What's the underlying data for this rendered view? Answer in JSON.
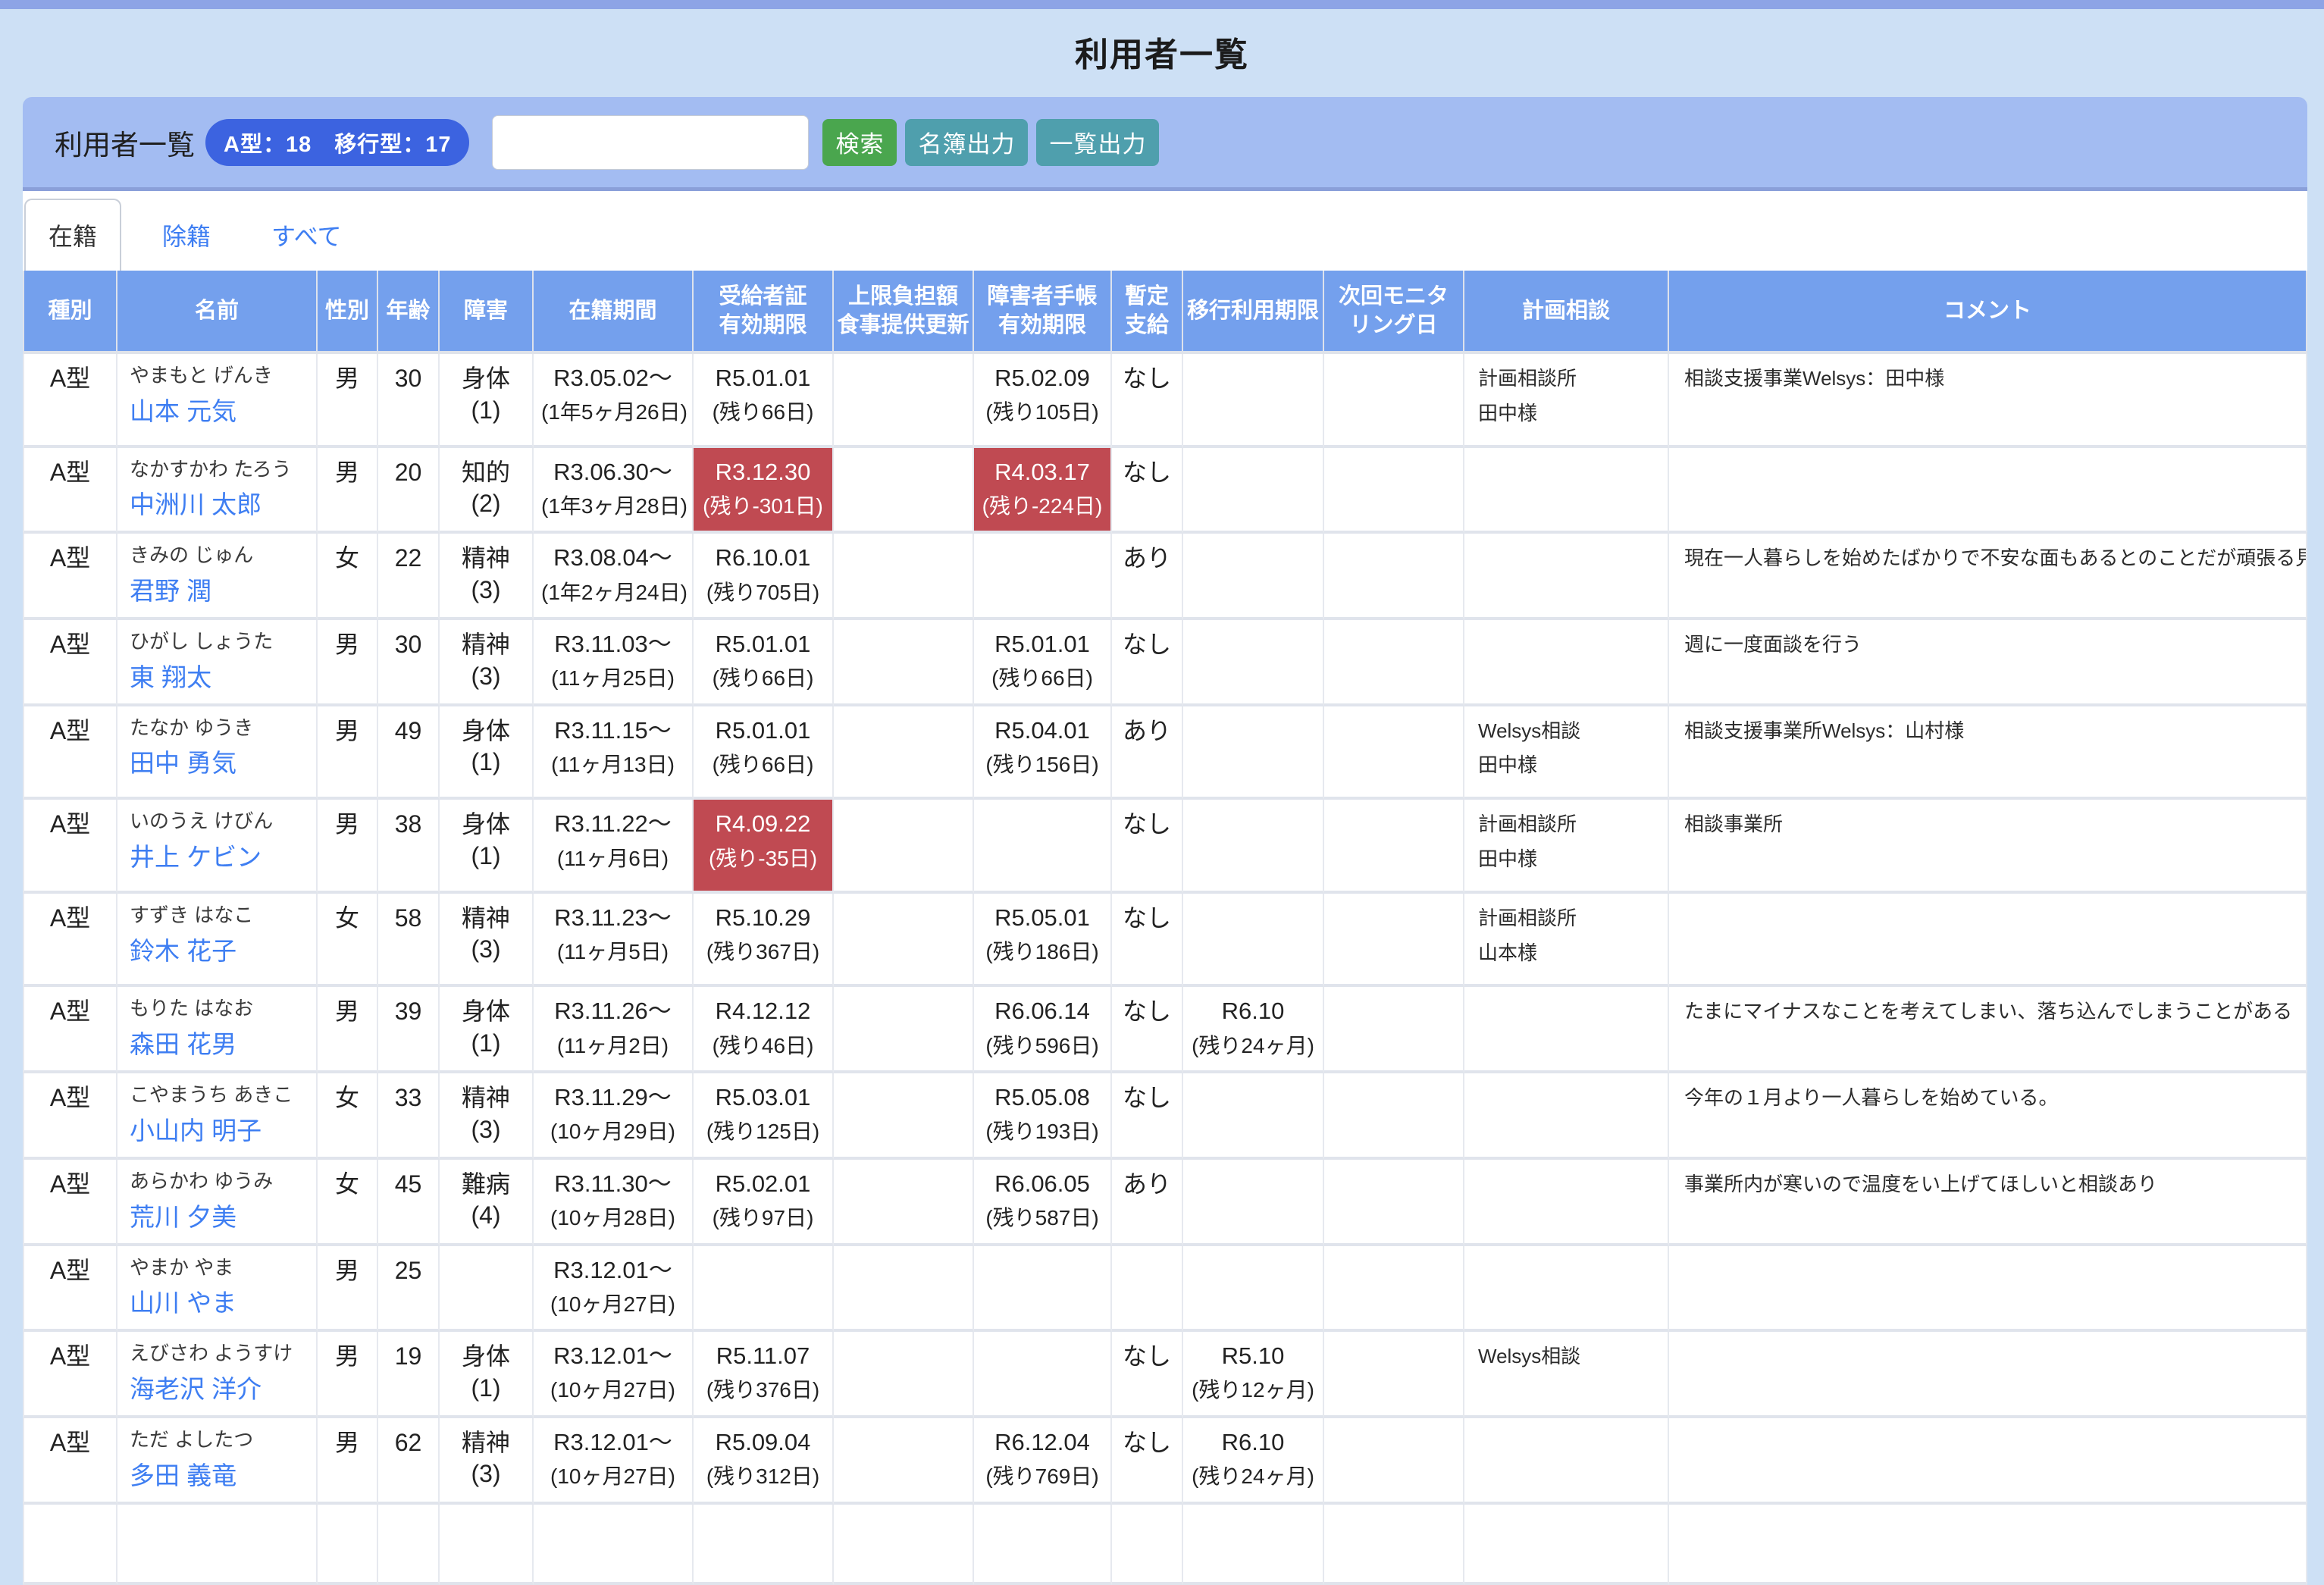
{
  "page": {
    "title": "利用者一覧"
  },
  "toolbar": {
    "label": "利用者一覧",
    "badge": "A型：18　移行型：17",
    "search_value": "",
    "search_placeholder": "",
    "buttons": {
      "search": "検索",
      "roster_export": "名簿出力",
      "list_export": "一覧出力"
    }
  },
  "tabs": [
    {
      "label": "在籍",
      "active": true
    },
    {
      "label": "除籍",
      "active": false
    },
    {
      "label": "すべて",
      "active": false
    }
  ],
  "colors": {
    "page_background": "#cde0f5",
    "top_strip": "#8da4e6",
    "toolbar_background": "#a3bcf2",
    "badge_background": "#3c63e0",
    "header_background": "#74a0ed",
    "alert_red": "#c04a52",
    "link_blue": "#3e7ef2",
    "button_green": "#4aa64e",
    "button_teal": "#4f9fad"
  },
  "table": {
    "columns": [
      {
        "id": "type",
        "lines": [
          "種別"
        ]
      },
      {
        "id": "name",
        "lines": [
          "名前"
        ]
      },
      {
        "id": "gender",
        "lines": [
          "性別"
        ]
      },
      {
        "id": "age",
        "lines": [
          "年齢"
        ]
      },
      {
        "id": "disability",
        "lines": [
          "障害"
        ]
      },
      {
        "id": "enroll",
        "lines": [
          "在籍期間"
        ]
      },
      {
        "id": "certificate",
        "lines": [
          "受給者証",
          "有効期限"
        ]
      },
      {
        "id": "meal",
        "lines": [
          "上限負担額",
          "食事提供更新"
        ]
      },
      {
        "id": "handbook",
        "lines": [
          "障害者手帳",
          "有効期限"
        ]
      },
      {
        "id": "provisional",
        "lines": [
          "暫定",
          "支給"
        ]
      },
      {
        "id": "transition",
        "lines": [
          "移行利用期限"
        ]
      },
      {
        "id": "monitoring",
        "lines": [
          "次回モニタ",
          "リング日"
        ]
      },
      {
        "id": "plan",
        "lines": [
          "計画相談"
        ]
      },
      {
        "id": "comment",
        "lines": [
          "コメント"
        ]
      }
    ],
    "rows": [
      {
        "type": "A型",
        "furigana": "やまもと げんき",
        "name": "山本 元気",
        "gender": "男",
        "age": "30",
        "disability": "身体(1)",
        "enroll": [
          "R3.05.02～",
          "(1年5ヶ月26日)"
        ],
        "certificate": [
          "R5.01.01",
          "(残り66日)"
        ],
        "certificate_alert": false,
        "meal": [],
        "handbook": [
          "R5.02.09",
          "(残り105日)"
        ],
        "handbook_alert": false,
        "provisional": "なし",
        "transition": [],
        "monitoring": [],
        "plan": [
          "計画相談所",
          "田中様"
        ],
        "comment": "相談支援事業Welsys：田中様"
      },
      {
        "type": "A型",
        "furigana": "なかすかわ たろう",
        "name": "中洲川 太郎",
        "gender": "男",
        "age": "20",
        "disability": "知的(2)",
        "enroll": [
          "R3.06.30～",
          "(1年3ヶ月28日)"
        ],
        "certificate": [
          "R3.12.30",
          "(残り-301日)"
        ],
        "certificate_alert": true,
        "meal": [],
        "handbook": [
          "R4.03.17",
          "(残り-224日)"
        ],
        "handbook_alert": true,
        "provisional": "なし",
        "transition": [],
        "monitoring": [],
        "plan": [],
        "comment": ""
      },
      {
        "type": "A型",
        "furigana": "きみの じゅん",
        "name": "君野 潤",
        "gender": "女",
        "age": "22",
        "disability": "精神(3)",
        "enroll": [
          "R3.08.04～",
          "(1年2ヶ月24日)"
        ],
        "certificate": [
          "R6.10.01",
          "(残り705日)"
        ],
        "certificate_alert": false,
        "meal": [],
        "handbook": [],
        "handbook_alert": false,
        "provisional": "あり",
        "transition": [],
        "monitoring": [],
        "plan": [],
        "comment": "現在一人暮らしを始めたばかりで不安な面もあるとのことだが頑張る見たいです"
      },
      {
        "type": "A型",
        "furigana": "ひがし しょうた",
        "name": "東 翔太",
        "gender": "男",
        "age": "30",
        "disability": "精神(3)",
        "enroll": [
          "R3.11.03～",
          "(11ヶ月25日)"
        ],
        "certificate": [
          "R5.01.01",
          "(残り66日)"
        ],
        "certificate_alert": false,
        "meal": [],
        "handbook": [
          "R5.01.01",
          "(残り66日)"
        ],
        "handbook_alert": false,
        "provisional": "なし",
        "transition": [],
        "monitoring": [],
        "plan": [],
        "comment": "週に一度面談を行う"
      },
      {
        "type": "A型",
        "furigana": "たなか ゆうき",
        "name": "田中 勇気",
        "gender": "男",
        "age": "49",
        "disability": "身体(1)",
        "enroll": [
          "R3.11.15～",
          "(11ヶ月13日)"
        ],
        "certificate": [
          "R5.01.01",
          "(残り66日)"
        ],
        "certificate_alert": false,
        "meal": [],
        "handbook": [
          "R5.04.01",
          "(残り156日)"
        ],
        "handbook_alert": false,
        "provisional": "あり",
        "transition": [],
        "monitoring": [],
        "plan": [
          "Welsys相談",
          "田中様"
        ],
        "comment": "相談支援事業所Welsys：山村様"
      },
      {
        "type": "A型",
        "furigana": "いのうえ けびん",
        "name": "井上 ケビン",
        "gender": "男",
        "age": "38",
        "disability": "身体(1)",
        "enroll": [
          "R3.11.22～",
          "(11ヶ月6日)"
        ],
        "certificate": [
          "R4.09.22",
          "(残り-35日)"
        ],
        "certificate_alert": true,
        "meal": [],
        "handbook": [],
        "handbook_alert": false,
        "provisional": "なし",
        "transition": [],
        "monitoring": [],
        "plan": [
          "計画相談所",
          "田中様"
        ],
        "comment": "相談事業所"
      },
      {
        "type": "A型",
        "furigana": "すずき はなこ",
        "name": "鈴木 花子",
        "gender": "女",
        "age": "58",
        "disability": "精神(3)",
        "enroll": [
          "R3.11.23～",
          "(11ヶ月5日)"
        ],
        "certificate": [
          "R5.10.29",
          "(残り367日)"
        ],
        "certificate_alert": false,
        "meal": [],
        "handbook": [
          "R5.05.01",
          "(残り186日)"
        ],
        "handbook_alert": false,
        "provisional": "なし",
        "transition": [],
        "monitoring": [],
        "plan": [
          "計画相談所",
          "山本様"
        ],
        "comment": ""
      },
      {
        "type": "A型",
        "furigana": "もりた はなお",
        "name": "森田 花男",
        "gender": "男",
        "age": "39",
        "disability": "身体(1)",
        "enroll": [
          "R3.11.26～",
          "(11ヶ月2日)"
        ],
        "certificate": [
          "R4.12.12",
          "(残り46日)"
        ],
        "certificate_alert": false,
        "meal": [],
        "handbook": [
          "R6.06.14",
          "(残り596日)"
        ],
        "handbook_alert": false,
        "provisional": "なし",
        "transition": [
          "R6.10",
          "(残り24ヶ月)"
        ],
        "monitoring": [],
        "plan": [],
        "comment": "たまにマイナスなことを考えてしまい、落ち込んでしまうことがある"
      },
      {
        "type": "A型",
        "furigana": "こやまうち あきこ",
        "name": "小山内 明子",
        "gender": "女",
        "age": "33",
        "disability": "精神(3)",
        "enroll": [
          "R3.11.29～",
          "(10ヶ月29日)"
        ],
        "certificate": [
          "R5.03.01",
          "(残り125日)"
        ],
        "certificate_alert": false,
        "meal": [],
        "handbook": [
          "R5.05.08",
          "(残り193日)"
        ],
        "handbook_alert": false,
        "provisional": "なし",
        "transition": [],
        "monitoring": [],
        "plan": [],
        "comment": "今年の１月より一人暮らしを始めている。"
      },
      {
        "type": "A型",
        "furigana": "あらかわ ゆうみ",
        "name": "荒川 夕美",
        "gender": "女",
        "age": "45",
        "disability": "難病(4)",
        "enroll": [
          "R3.11.30～",
          "(10ヶ月28日)"
        ],
        "certificate": [
          "R5.02.01",
          "(残り97日)"
        ],
        "certificate_alert": false,
        "meal": [],
        "handbook": [
          "R6.06.05",
          "(残り587日)"
        ],
        "handbook_alert": false,
        "provisional": "あり",
        "transition": [],
        "monitoring": [],
        "plan": [],
        "comment": "事業所内が寒いので温度をい上げてほしいと相談あり"
      },
      {
        "type": "A型",
        "furigana": "やまか やま",
        "name": "山川 やま",
        "gender": "男",
        "age": "25",
        "disability": "",
        "enroll": [
          "R3.12.01～",
          "(10ヶ月27日)"
        ],
        "certificate": [],
        "certificate_alert": false,
        "meal": [],
        "handbook": [],
        "handbook_alert": false,
        "provisional": "",
        "transition": [],
        "monitoring": [],
        "plan": [],
        "comment": ""
      },
      {
        "type": "A型",
        "furigana": "えびさわ ようすけ",
        "name": "海老沢 洋介",
        "gender": "男",
        "age": "19",
        "disability": "身体(1)",
        "enroll": [
          "R3.12.01～",
          "(10ヶ月27日)"
        ],
        "certificate": [
          "R5.11.07",
          "(残り376日)"
        ],
        "certificate_alert": false,
        "meal": [],
        "handbook": [],
        "handbook_alert": false,
        "provisional": "なし",
        "transition": [
          "R5.10",
          "(残り12ヶ月)"
        ],
        "monitoring": [],
        "plan": [
          "Welsys相談"
        ],
        "comment": ""
      },
      {
        "type": "A型",
        "furigana": "ただ よしたつ",
        "name": "多田 義竜",
        "gender": "男",
        "age": "62",
        "disability": "精神(3)",
        "enroll": [
          "R3.12.01～",
          "(10ヶ月27日)"
        ],
        "certificate": [
          "R5.09.04",
          "(残り312日)"
        ],
        "certificate_alert": false,
        "meal": [],
        "handbook": [
          "R6.12.04",
          "(残り769日)"
        ],
        "handbook_alert": false,
        "provisional": "なし",
        "transition": [
          "R6.10",
          "(残り24ヶ月)"
        ],
        "monitoring": [],
        "plan": [],
        "comment": ""
      },
      {
        "type": "",
        "furigana": "",
        "name": "",
        "gender": "",
        "age": "",
        "disability": "",
        "enroll": [],
        "certificate": [],
        "certificate_alert": false,
        "meal": [],
        "handbook": [],
        "handbook_alert": false,
        "provisional": "",
        "transition": [],
        "monitoring": [],
        "plan": [],
        "comment": ""
      }
    ]
  }
}
